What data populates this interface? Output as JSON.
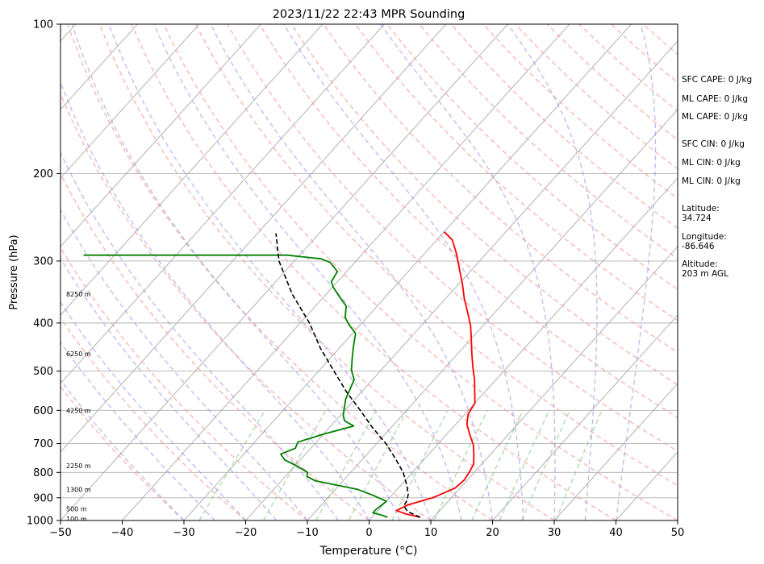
{
  "chart_data": {
    "type": "line",
    "title": "2023/11/22 22:43 MPR Sounding",
    "xlabel": "Temperature (°C)",
    "ylabel": "Pressure (hPa)",
    "xlim": [
      -50,
      50
    ],
    "ylim": [
      1000,
      100
    ],
    "y_scale": "log",
    "x_ticks": [
      -50,
      -40,
      -30,
      -20,
      -10,
      0,
      10,
      20,
      30,
      40,
      50
    ],
    "y_ticks": [
      100,
      200,
      300,
      400,
      500,
      600,
      700,
      800,
      900,
      1000
    ],
    "grid": true,
    "skew_t": true,
    "height_labels": [
      {
        "text": "100 m",
        "p": 993
      },
      {
        "text": "500 m",
        "p": 948
      },
      {
        "text": "1300 m",
        "p": 866
      },
      {
        "text": "2250 m",
        "p": 775
      },
      {
        "text": "4250 m",
        "p": 600
      },
      {
        "text": "6250 m",
        "p": 461
      },
      {
        "text": "8250 m",
        "p": 350
      }
    ],
    "series": [
      {
        "color": "#ff0000",
        "style": "solid",
        "points": [
          [
            7.8,
            985
          ],
          [
            5.0,
            970
          ],
          [
            3.0,
            955
          ],
          [
            4.0,
            930
          ],
          [
            7.0,
            900
          ],
          [
            9.2,
            860
          ],
          [
            9.5,
            830
          ],
          [
            9.2,
            800
          ],
          [
            8.7,
            770
          ],
          [
            7.5,
            740
          ],
          [
            5.9,
            705
          ],
          [
            3.7,
            670
          ],
          [
            1.8,
            640
          ],
          [
            0.5,
            610
          ],
          [
            0.0,
            580
          ],
          [
            -1.7,
            550
          ],
          [
            -3.5,
            520
          ],
          [
            -5.5,
            492
          ],
          [
            -7.8,
            460
          ],
          [
            -10.0,
            430
          ],
          [
            -12.0,
            405
          ],
          [
            -14.5,
            380
          ],
          [
            -17.0,
            357
          ],
          [
            -19.5,
            333
          ],
          [
            -22.0,
            312
          ],
          [
            -24.8,
            290
          ],
          [
            -27.5,
            272
          ],
          [
            -30.0,
            262
          ]
        ]
      },
      {
        "color": "#008000",
        "style": "solid",
        "points": [
          [
            2.5,
            985
          ],
          [
            1.2,
            975
          ],
          [
            -0.5,
            965
          ],
          [
            -0.5,
            950
          ],
          [
            0.0,
            915
          ],
          [
            -3.0,
            890
          ],
          [
            -6.5,
            865
          ],
          [
            -14.5,
            832
          ],
          [
            -16.5,
            815
          ],
          [
            -17.0,
            800
          ],
          [
            -19.5,
            778
          ],
          [
            -22.5,
            755
          ],
          [
            -24.0,
            735
          ],
          [
            -22.5,
            715
          ],
          [
            -23.0,
            695
          ],
          [
            -20.0,
            670
          ],
          [
            -16.3,
            645
          ],
          [
            -18.5,
            630
          ],
          [
            -19.5,
            615
          ],
          [
            -21.5,
            570
          ],
          [
            -23.0,
            520
          ],
          [
            -24.8,
            498
          ],
          [
            -26.5,
            470
          ],
          [
            -28.0,
            445
          ],
          [
            -29.5,
            420
          ],
          [
            -32.0,
            402
          ],
          [
            -33.5,
            390
          ],
          [
            -35.0,
            370
          ],
          [
            -37.5,
            354
          ],
          [
            -40.0,
            338
          ],
          [
            -41.0,
            330
          ],
          [
            -41.5,
            315
          ],
          [
            -44.0,
            302
          ],
          [
            -46.0,
            297
          ],
          [
            -52.0,
            292
          ],
          [
            -85.0,
            292
          ]
        ]
      },
      {
        "color": "#000000",
        "style": "dashed",
        "points": [
          [
            7.8,
            985
          ],
          [
            5.0,
            960
          ],
          [
            3.5,
            935
          ],
          [
            3.2,
            910
          ],
          [
            2.5,
            885
          ],
          [
            1.0,
            850
          ],
          [
            -1.5,
            800
          ],
          [
            -4.8,
            750
          ],
          [
            -8.5,
            700
          ],
          [
            -13.0,
            650
          ],
          [
            -17.5,
            600
          ],
          [
            -22.5,
            550
          ],
          [
            -27.5,
            500
          ],
          [
            -33.0,
            450
          ],
          [
            -38.5,
            400
          ],
          [
            -45.5,
            350
          ],
          [
            -52.5,
            300
          ],
          [
            -57.0,
            264
          ]
        ]
      }
    ]
  },
  "side_panel": [
    {
      "text": "SFC CAPE: 0 J/kg"
    },
    {
      "text": "ML CAPE: 0 J/kg"
    },
    {
      "text": "ML CAPE: 0 J/kg"
    },
    {
      "text": "SFC CIN: 0 J/kg"
    },
    {
      "text": "ML CIN: 0 J/kg"
    },
    {
      "text": "ML CIN: 0 J/kg"
    },
    {
      "text": "Latitude:\n34.724"
    },
    {
      "text": "Longitude:\n-86.646"
    },
    {
      "text": "Altitude:\n203 m AGL"
    }
  ]
}
